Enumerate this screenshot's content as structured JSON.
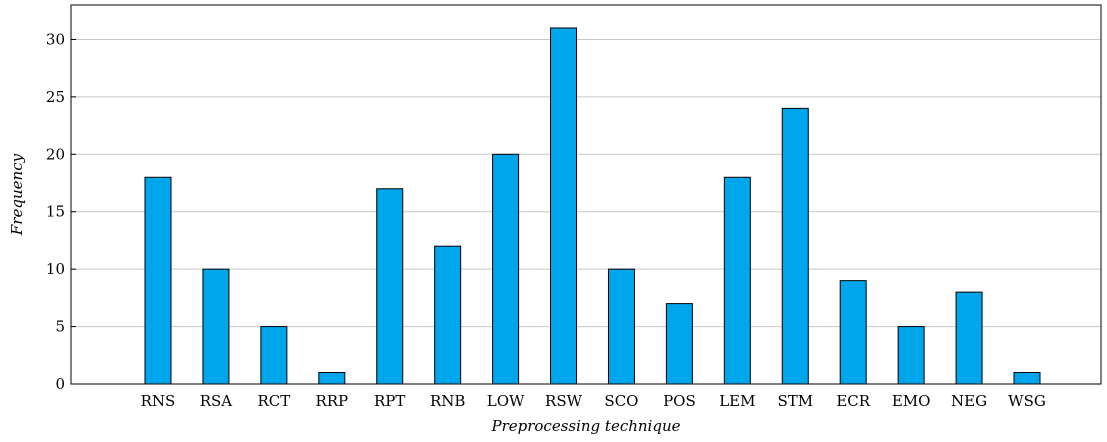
{
  "chart_data": {
    "type": "bar",
    "title": "",
    "xlabel": "Preprocessing technique",
    "ylabel": "Frequency",
    "categories": [
      "RNS",
      "RSA",
      "RCT",
      "RRP",
      "RPT",
      "RNB",
      "LOW",
      "RSW",
      "SCO",
      "POS",
      "LEM",
      "STM",
      "ECR",
      "EMO",
      "NEG",
      "WSG"
    ],
    "values": [
      18,
      10,
      5,
      1,
      17,
      12,
      20,
      31,
      10,
      7,
      18,
      24,
      9,
      5,
      8,
      1
    ],
    "ylim": [
      0,
      33
    ],
    "yticks": [
      0,
      5,
      10,
      15,
      20,
      25,
      30
    ],
    "grid": "horizontal",
    "legend": "none",
    "colors": {
      "bar_fill": "#00a6ec",
      "bar_stroke": "#000000",
      "grid": "#c8c8c8",
      "axis": "#000000"
    }
  }
}
